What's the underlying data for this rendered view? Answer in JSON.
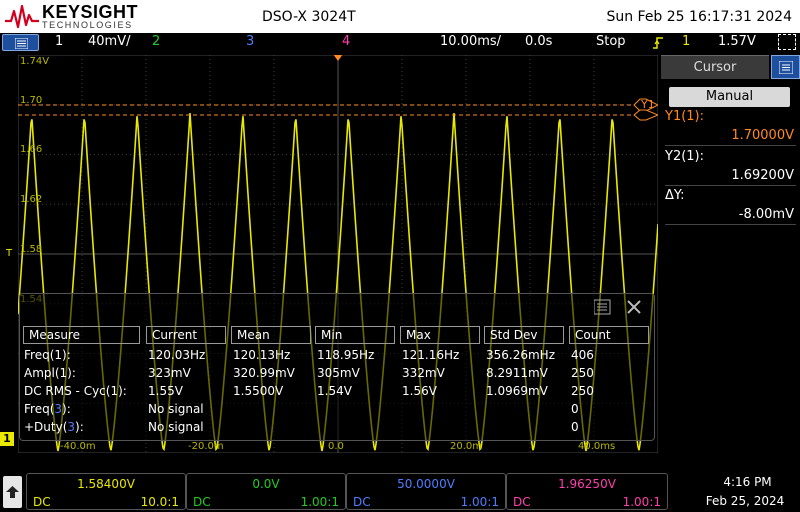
{
  "brand": {
    "name": "KEYSIGHT",
    "sub": "TECHNOLOGIES"
  },
  "model": "DSO-X 3024T",
  "datetime": "Sun Feb 25 16:17:31 2024",
  "status": {
    "ch1_num": "1",
    "ch1_scale": "40mV/",
    "ch2_num": "2",
    "ch3_num": "3",
    "ch4_num": "4",
    "timebase": "10.00ms/",
    "delay": "0.0s",
    "run_state": "Stop",
    "trigger_source": "1",
    "trigger_level": "1.57V"
  },
  "grid": {
    "y_labels": [
      "1.74V",
      "1.70",
      "1.66",
      "1.62",
      "1.58",
      "1.54"
    ],
    "x_labels": [
      "-40.0m",
      "-20.0m",
      "0.0",
      "20.0m",
      "40.0ms"
    ],
    "cursor_tag": "Y1",
    "ch1_marker": "1",
    "trigger_marker": "T"
  },
  "sidebar": {
    "tab": "Cursor",
    "mode": "Manual",
    "y1_label": "Y1(1):",
    "y1_value": "1.70000V",
    "y2_label": "Y2(1):",
    "y2_value": "1.69200V",
    "dy_label": "ΔY:",
    "dy_value": "-8.00mV"
  },
  "measure": {
    "headers": [
      "Measure",
      "Current",
      "Mean",
      "Min",
      "Max",
      "Std Dev",
      "Count"
    ],
    "rows": [
      {
        "name": "Freq(1):",
        "cells": [
          "120.03Hz",
          "120.13Hz",
          "118.95Hz",
          "121.16Hz",
          "356.26mHz",
          "406"
        ]
      },
      {
        "name": "Ampl(1):",
        "cells": [
          "323mV",
          "320.99mV",
          "305mV",
          "332mV",
          "8.2911mV",
          "250"
        ]
      },
      {
        "name": "DC RMS - Cyc(1):",
        "cells": [
          "1.55V",
          "1.5500V",
          "1.54V",
          "1.56V",
          "1.0969mV",
          "250"
        ]
      },
      {
        "name_pre": "Freq(",
        "name_ch": "3",
        "name_post": "):",
        "current": "No signal",
        "count": "0"
      },
      {
        "name_pre": "+Duty(",
        "name_ch": "3",
        "name_post": "):",
        "current": "No signal",
        "count": "0"
      }
    ]
  },
  "channels": [
    {
      "value": "1.58400V",
      "coupling": "DC",
      "probe": "10.0:1",
      "color": "#e8e800"
    },
    {
      "value": "0.0V",
      "coupling": "DC",
      "probe": "1.00:1",
      "color": "#22cc22"
    },
    {
      "value": "50.0000V",
      "coupling": "DC",
      "probe": "1.00:1",
      "color": "#4f7dff"
    },
    {
      "value": "1.96250V",
      "coupling": "DC",
      "probe": "1.00:1",
      "color": "#ff3fae"
    }
  ],
  "clock": {
    "time": "4:16 PM",
    "date": "Feb 25, 2024"
  },
  "colors": {
    "ch1": "#e8e800",
    "ch2": "#22cc22",
    "ch3": "#4f7dff",
    "ch4": "#ff3fae",
    "cursor": "#ff8a1f",
    "accent": "#1d4f9e"
  }
}
